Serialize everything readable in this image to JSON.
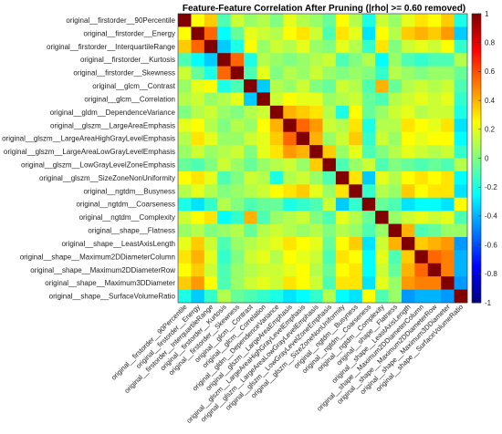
{
  "chart_data": {
    "type": "heatmap",
    "title": "Feature-Feature Correlation After Pruning (|rho| >= 0.60 removed)",
    "labels": [
      "original__firstorder__90Percentile",
      "original__firstorder__Energy",
      "original__firstorder__InterquartileRange",
      "original__firstorder__Kurtosis",
      "original__firstorder__Skewness",
      "original__glcm__Contrast",
      "original__glcm__Correlation",
      "original__gldm__DependenceVariance",
      "original__glszm__LargeAreaEmphasis",
      "original__glszm__LargeAreaHighGrayLevelEmphasis",
      "original__glszm__LargeAreaLowGrayLevelEmphasis",
      "original__glszm__LowGrayLevelZoneEmphasis",
      "original__glszm__SizeZoneNonUniformity",
      "original__ngtdm__Busyness",
      "original__ngtdm__Coarseness",
      "original__ngtdm__Complexity",
      "original__shape__Flatness",
      "original__shape__LeastAxisLength",
      "original__shape__Maximum2DDiameterColumn",
      "original__shape__Maximum2DDiameterRow",
      "original__shape__Maximum3DDiameter",
      "original__shape__SurfaceVolumeRatio"
    ],
    "matrix": [
      [
        1.0,
        0.25,
        0.35,
        -0.1,
        0.15,
        0.05,
        0.1,
        0.0,
        0.2,
        0.1,
        0.05,
        -0.05,
        0.25,
        0.1,
        -0.2,
        0.15,
        0.05,
        0.2,
        0.3,
        0.25,
        0.35,
        -0.2
      ],
      [
        0.25,
        1.0,
        0.55,
        -0.25,
        -0.05,
        0.2,
        0.15,
        0.1,
        0.25,
        0.3,
        0.15,
        -0.1,
        0.3,
        0.2,
        -0.3,
        0.25,
        0.1,
        0.35,
        0.4,
        0.35,
        0.45,
        -0.35
      ],
      [
        0.35,
        0.55,
        1.0,
        -0.35,
        -0.2,
        0.25,
        0.05,
        0.15,
        0.1,
        0.2,
        0.05,
        0.0,
        0.2,
        0.1,
        -0.15,
        0.3,
        0.0,
        0.15,
        0.2,
        0.15,
        0.25,
        -0.15
      ],
      [
        -0.1,
        -0.25,
        -0.35,
        1.0,
        0.55,
        -0.2,
        0.1,
        0.05,
        0.0,
        0.05,
        0.1,
        0.15,
        -0.1,
        0.0,
        0.1,
        -0.25,
        0.05,
        -0.1,
        -0.15,
        -0.1,
        -0.1,
        0.1
      ],
      [
        0.15,
        -0.05,
        -0.2,
        0.55,
        1.0,
        -0.1,
        0.2,
        0.0,
        0.1,
        0.05,
        0.15,
        0.05,
        0.0,
        0.05,
        0.0,
        -0.15,
        0.1,
        0.05,
        0.0,
        0.05,
        0.05,
        -0.05
      ],
      [
        0.05,
        0.2,
        0.25,
        -0.2,
        -0.1,
        1.0,
        -0.35,
        0.1,
        0.05,
        0.15,
        0.0,
        -0.05,
        0.15,
        0.1,
        -0.1,
        0.4,
        -0.05,
        0.1,
        0.15,
        0.1,
        0.15,
        -0.1
      ],
      [
        0.1,
        0.15,
        0.05,
        0.1,
        0.2,
        -0.35,
        1.0,
        0.15,
        0.25,
        0.2,
        0.2,
        0.05,
        0.1,
        0.15,
        -0.05,
        -0.1,
        0.1,
        0.15,
        0.2,
        0.15,
        0.2,
        -0.15
      ],
      [
        0.0,
        0.1,
        0.15,
        0.05,
        0.0,
        0.1,
        0.15,
        1.0,
        0.4,
        0.35,
        0.3,
        0.1,
        -0.2,
        0.25,
        -0.05,
        0.05,
        0.15,
        0.2,
        0.1,
        0.15,
        0.15,
        -0.2
      ],
      [
        0.2,
        0.25,
        0.1,
        0.0,
        0.1,
        0.05,
        0.25,
        0.4,
        1.0,
        0.55,
        0.45,
        0.15,
        0.1,
        0.3,
        -0.2,
        0.1,
        0.1,
        0.3,
        0.25,
        0.2,
        0.3,
        -0.3
      ],
      [
        0.1,
        0.3,
        0.2,
        0.05,
        0.05,
        0.15,
        0.2,
        0.35,
        0.55,
        1.0,
        0.4,
        0.05,
        0.15,
        0.35,
        -0.15,
        0.15,
        0.05,
        0.25,
        0.2,
        0.25,
        0.25,
        -0.25
      ],
      [
        0.05,
        0.15,
        0.05,
        0.1,
        0.15,
        0.0,
        0.2,
        0.3,
        0.45,
        0.4,
        1.0,
        0.35,
        0.05,
        0.2,
        -0.1,
        0.0,
        0.1,
        0.2,
        0.15,
        0.1,
        0.15,
        -0.15
      ],
      [
        -0.05,
        -0.1,
        0.0,
        0.15,
        0.05,
        -0.05,
        0.05,
        0.1,
        0.15,
        0.05,
        0.35,
        1.0,
        -0.1,
        0.05,
        0.15,
        -0.1,
        0.0,
        -0.05,
        -0.1,
        -0.05,
        -0.1,
        0.1
      ],
      [
        0.25,
        0.3,
        0.2,
        -0.1,
        0.0,
        0.15,
        0.1,
        -0.2,
        0.1,
        0.15,
        0.05,
        -0.1,
        1.0,
        0.3,
        -0.35,
        0.2,
        0.1,
        0.25,
        0.3,
        0.25,
        0.3,
        -0.25
      ],
      [
        0.1,
        0.2,
        0.1,
        0.0,
        0.05,
        0.1,
        0.15,
        0.25,
        0.3,
        0.35,
        0.2,
        0.05,
        0.3,
        1.0,
        -0.15,
        0.1,
        0.05,
        0.35,
        0.25,
        0.3,
        0.3,
        -0.3
      ],
      [
        -0.2,
        -0.3,
        -0.15,
        0.1,
        0.0,
        -0.1,
        -0.05,
        -0.05,
        -0.2,
        -0.15,
        -0.1,
        0.15,
        -0.35,
        -0.15,
        1.0,
        -0.05,
        -0.1,
        -0.3,
        -0.25,
        -0.25,
        -0.3,
        0.25
      ],
      [
        0.15,
        0.25,
        0.3,
        -0.25,
        -0.15,
        0.4,
        -0.1,
        0.05,
        0.1,
        0.15,
        0.0,
        -0.1,
        0.2,
        0.1,
        -0.05,
        1.0,
        0.05,
        0.15,
        0.2,
        0.15,
        0.2,
        -0.1
      ],
      [
        0.05,
        0.1,
        0.0,
        0.05,
        0.1,
        -0.05,
        0.1,
        0.15,
        0.1,
        0.05,
        0.1,
        0.0,
        0.1,
        0.05,
        -0.1,
        0.05,
        1.0,
        0.4,
        -0.1,
        -0.05,
        0.05,
        0.05
      ],
      [
        0.2,
        0.35,
        0.15,
        -0.1,
        0.05,
        0.1,
        0.15,
        0.2,
        0.3,
        0.25,
        0.2,
        -0.05,
        0.25,
        0.35,
        -0.3,
        0.15,
        0.4,
        1.0,
        0.35,
        0.4,
        0.45,
        -0.45
      ],
      [
        0.3,
        0.4,
        0.2,
        -0.15,
        0.0,
        0.15,
        0.2,
        0.1,
        0.25,
        0.2,
        0.15,
        -0.1,
        0.3,
        0.25,
        -0.25,
        0.2,
        -0.1,
        0.35,
        1.0,
        0.55,
        0.5,
        -0.4
      ],
      [
        0.25,
        0.35,
        0.15,
        -0.1,
        0.05,
        0.1,
        0.15,
        0.15,
        0.2,
        0.25,
        0.1,
        -0.05,
        0.25,
        0.3,
        -0.25,
        0.15,
        -0.05,
        0.4,
        0.55,
        1.0,
        0.5,
        -0.4
      ],
      [
        0.35,
        0.45,
        0.25,
        -0.1,
        0.05,
        0.15,
        0.2,
        0.15,
        0.3,
        0.25,
        0.15,
        -0.1,
        0.3,
        0.3,
        -0.3,
        0.2,
        0.05,
        0.45,
        0.5,
        0.5,
        1.0,
        -0.45
      ],
      [
        -0.2,
        -0.35,
        -0.15,
        0.1,
        -0.05,
        -0.1,
        -0.15,
        -0.2,
        -0.3,
        -0.25,
        -0.15,
        0.1,
        -0.25,
        -0.3,
        0.25,
        -0.1,
        0.05,
        -0.45,
        -0.4,
        -0.4,
        -0.45,
        1.0
      ]
    ],
    "colorbar": {
      "range": [
        -1,
        1
      ],
      "ticks": [
        "1",
        "0.8",
        "0.6",
        "0.4",
        "0.2",
        "0",
        "-0.2",
        "-0.4",
        "-0.6",
        "-0.8",
        "-1"
      ],
      "colormap": "jet"
    },
    "grid": false
  }
}
